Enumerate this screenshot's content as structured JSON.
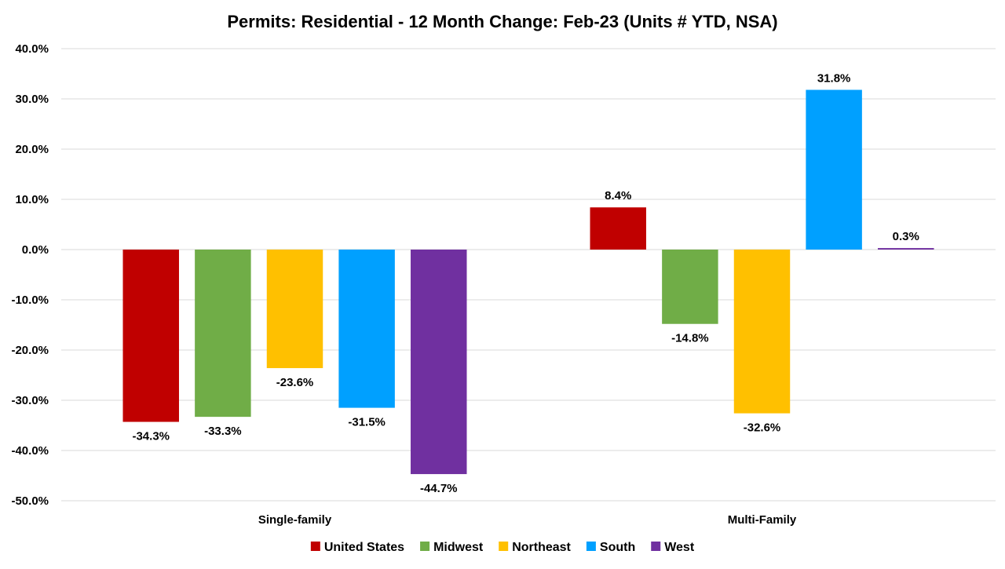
{
  "chart_data": {
    "type": "bar",
    "title": "Permits: Residential - 12 Month Change:  Feb-23 (Units # YTD, NSA)",
    "categories": [
      "Single-family",
      "Multi-Family"
    ],
    "series": [
      {
        "name": "United States",
        "color": "#c00000",
        "values": [
          -34.3,
          8.4
        ],
        "labels": [
          "-34.3%",
          "8.4%"
        ]
      },
      {
        "name": "Midwest",
        "color": "#70ad47",
        "values": [
          -33.3,
          -14.8
        ],
        "labels": [
          "-33.3%",
          "-14.8%"
        ]
      },
      {
        "name": "Northeast",
        "color": "#ffc000",
        "values": [
          -23.6,
          -32.6
        ],
        "labels": [
          "-23.6%",
          "-32.6%"
        ]
      },
      {
        "name": "South",
        "color": "#00a0ff",
        "values": [
          -31.5,
          31.8
        ],
        "labels": [
          "-31.5%",
          "31.8%"
        ]
      },
      {
        "name": "West",
        "color": "#7030a0",
        "values": [
          -44.7,
          0.3
        ],
        "labels": [
          "-44.7%",
          "0.3%"
        ]
      }
    ],
    "ylim": [
      -50,
      40
    ],
    "yticks": [
      40,
      30,
      20,
      10,
      0,
      -10,
      -20,
      -30,
      -40,
      -50
    ],
    "ytick_labels": [
      "40.0%",
      "30.0%",
      "20.0%",
      "10.0%",
      "0.0%",
      "-10.0%",
      "-20.0%",
      "-30.0%",
      "-40.0%",
      "-50.0%"
    ],
    "grid": true,
    "legend_position": "bottom"
  }
}
